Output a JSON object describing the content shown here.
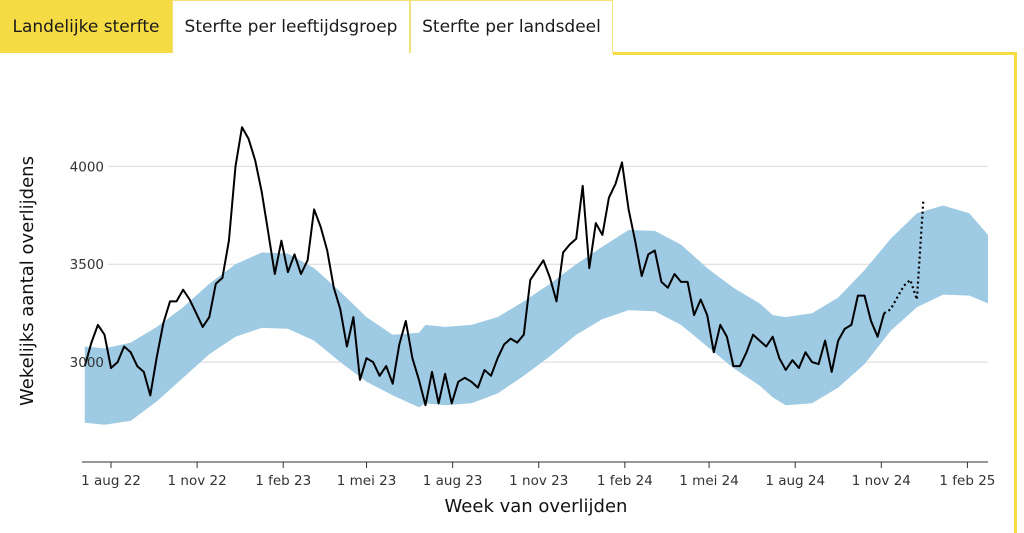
{
  "tabs": [
    {
      "label": "Landelijke sterfte",
      "active": true
    },
    {
      "label": "Sterfte per leeftijdsgroep",
      "active": false
    },
    {
      "label": "Sterfte per landsdeel",
      "active": false
    }
  ],
  "colors": {
    "accent": "#f5dc45",
    "band": "#9ecae4",
    "line": "#000000",
    "grid": "#d9d9d9"
  },
  "chart_data": {
    "type": "line",
    "xlabel": "Week van overlijden",
    "ylabel": "Wekelijks aantal overlijdens",
    "ylim": [
      2490,
      4400
    ],
    "y_ticks": [
      3000,
      3500,
      4000
    ],
    "x_range": [
      "2022-07-01",
      "2025-02-23"
    ],
    "x_ticks": [
      {
        "date": "2022-08-01",
        "label": "1 aug 22"
      },
      {
        "date": "2022-11-01",
        "label": "1 nov 22"
      },
      {
        "date": "2023-02-01",
        "label": "1 feb 23"
      },
      {
        "date": "2023-05-01",
        "label": "1 mei 23"
      },
      {
        "date": "2023-08-01",
        "label": "1 aug 23"
      },
      {
        "date": "2023-11-01",
        "label": "1 nov 23"
      },
      {
        "date": "2024-02-01",
        "label": "1 feb 24"
      },
      {
        "date": "2024-05-01",
        "label": "1 mei 24"
      },
      {
        "date": "2024-08-01",
        "label": "1 aug 24"
      },
      {
        "date": "2024-11-01",
        "label": "1 nov 24"
      },
      {
        "date": "2025-02-01",
        "label": "1 feb 25"
      }
    ],
    "grid": true,
    "band": {
      "x": [
        "2022-07-04",
        "2022-07-25",
        "2022-08-22",
        "2022-09-19",
        "2022-10-17",
        "2022-11-14",
        "2022-12-12",
        "2023-01-09",
        "2023-02-06",
        "2023-03-06",
        "2023-04-03",
        "2023-05-01",
        "2023-05-29",
        "2023-06-26",
        "2023-07-03",
        "2023-07-24",
        "2023-08-21",
        "2023-09-18",
        "2023-10-16",
        "2023-11-13",
        "2023-12-11",
        "2024-01-08",
        "2024-02-05",
        "2024-03-04",
        "2024-04-01",
        "2024-04-29",
        "2024-05-27",
        "2024-06-24",
        "2024-07-08",
        "2024-07-22",
        "2024-08-19",
        "2024-09-16",
        "2024-10-14",
        "2024-11-11",
        "2024-12-09",
        "2025-01-06",
        "2025-02-03",
        "2025-02-23"
      ],
      "upper": [
        3080,
        3070,
        3100,
        3180,
        3280,
        3400,
        3500,
        3560,
        3555,
        3480,
        3360,
        3230,
        3140,
        3150,
        3190,
        3180,
        3190,
        3230,
        3310,
        3400,
        3500,
        3590,
        3675,
        3670,
        3600,
        3480,
        3380,
        3300,
        3240,
        3230,
        3250,
        3330,
        3470,
        3630,
        3760,
        3800,
        3760,
        3650
      ],
      "lower": [
        2690,
        2680,
        2700,
        2800,
        2920,
        3040,
        3130,
        3175,
        3170,
        3110,
        3000,
        2900,
        2830,
        2770,
        2790,
        2780,
        2790,
        2840,
        2930,
        3030,
        3140,
        3220,
        3265,
        3260,
        3190,
        3080,
        2970,
        2880,
        2820,
        2780,
        2790,
        2870,
        2990,
        3160,
        3280,
        3345,
        3340,
        3300
      ]
    },
    "series": [
      {
        "x": [
          "2022-07-04",
          "2022-07-11",
          "2022-07-18",
          "2022-07-25",
          "2022-08-01",
          "2022-08-08",
          "2022-08-15",
          "2022-08-22",
          "2022-08-29",
          "2022-09-05",
          "2022-09-12",
          "2022-09-19",
          "2022-09-26",
          "2022-10-03",
          "2022-10-10",
          "2022-10-17",
          "2022-10-24",
          "2022-10-31",
          "2022-11-07",
          "2022-11-14",
          "2022-11-21",
          "2022-11-28",
          "2022-12-05",
          "2022-12-12",
          "2022-12-19",
          "2022-12-26",
          "2023-01-02",
          "2023-01-09",
          "2023-01-16",
          "2023-01-23",
          "2023-01-30",
          "2023-02-06",
          "2023-02-13",
          "2023-02-20",
          "2023-02-27",
          "2023-03-06",
          "2023-03-13",
          "2023-03-20",
          "2023-03-27",
          "2023-04-03",
          "2023-04-10",
          "2023-04-17",
          "2023-04-24",
          "2023-05-01",
          "2023-05-08",
          "2023-05-15",
          "2023-05-22",
          "2023-05-29",
          "2023-06-05",
          "2023-06-12",
          "2023-06-19",
          "2023-06-26",
          "2023-07-03",
          "2023-07-10",
          "2023-07-17",
          "2023-07-24",
          "2023-07-31",
          "2023-08-07",
          "2023-08-14",
          "2023-08-21",
          "2023-08-28",
          "2023-09-04",
          "2023-09-11",
          "2023-09-18",
          "2023-09-25",
          "2023-10-02",
          "2023-10-09",
          "2023-10-16",
          "2023-10-23",
          "2023-10-30",
          "2023-11-06",
          "2023-11-13",
          "2023-11-20",
          "2023-11-27",
          "2023-12-04",
          "2023-12-11",
          "2023-12-18",
          "2023-12-25",
          "2024-01-01",
          "2024-01-08",
          "2024-01-15",
          "2024-01-22",
          "2024-01-29",
          "2024-02-05",
          "2024-02-12",
          "2024-02-19",
          "2024-02-26",
          "2024-03-04",
          "2024-03-11",
          "2024-03-18",
          "2024-03-25",
          "2024-04-01",
          "2024-04-08",
          "2024-04-15",
          "2024-04-22",
          "2024-04-29",
          "2024-05-06",
          "2024-05-13",
          "2024-05-20",
          "2024-05-27",
          "2024-06-03",
          "2024-06-10",
          "2024-06-17",
          "2024-06-24",
          "2024-07-01",
          "2024-07-08",
          "2024-07-15",
          "2024-07-22",
          "2024-07-29",
          "2024-08-05",
          "2024-08-12",
          "2024-08-19",
          "2024-08-26",
          "2024-09-02",
          "2024-09-09",
          "2024-09-16",
          "2024-09-23",
          "2024-09-30",
          "2024-10-07",
          "2024-10-14",
          "2024-10-21",
          "2024-10-28",
          "2024-11-04"
        ],
        "y": [
          2980,
          3100,
          3190,
          3140,
          2970,
          3000,
          3080,
          3050,
          2980,
          2950,
          2830,
          3030,
          3200,
          3310,
          3310,
          3370,
          3320,
          3250,
          3180,
          3230,
          3400,
          3430,
          3620,
          4000,
          4200,
          4140,
          4030,
          3870,
          3660,
          3450,
          3620,
          3460,
          3550,
          3450,
          3520,
          3780,
          3690,
          3570,
          3380,
          3270,
          3080,
          3230,
          2910,
          3020,
          3000,
          2930,
          2980,
          2890,
          3090,
          3210,
          3020,
          2910,
          2780,
          2950,
          2790,
          2940,
          2790,
          2900,
          2920,
          2900,
          2870,
          2960,
          2930,
          3020,
          3090,
          3120,
          3100,
          3140,
          3420,
          3470,
          3520,
          3430,
          3310,
          3560,
          3600,
          3630,
          3900,
          3480,
          3710,
          3650,
          3840,
          3910,
          4020,
          3780,
          3620,
          3440,
          3550,
          3570,
          3410,
          3380,
          3450,
          3410,
          3410,
          3240,
          3320,
          3240,
          3050,
          3190,
          3130,
          2980,
          2980,
          3050,
          3140,
          3110,
          3080,
          3130,
          3020,
          2960,
          3010,
          2970,
          3050,
          3000,
          2990,
          3110,
          2950,
          3110,
          3170,
          3190,
          3340,
          3340,
          3210,
          3130,
          3250
        ]
      },
      {
        "style": "dotted",
        "x": [
          "2024-11-04",
          "2024-11-11",
          "2024-11-18",
          "2024-11-25",
          "2024-12-02",
          "2024-12-09",
          "2024-12-16"
        ],
        "y": [
          3250,
          3270,
          3330,
          3390,
          3420,
          3320,
          3830
        ]
      }
    ]
  }
}
